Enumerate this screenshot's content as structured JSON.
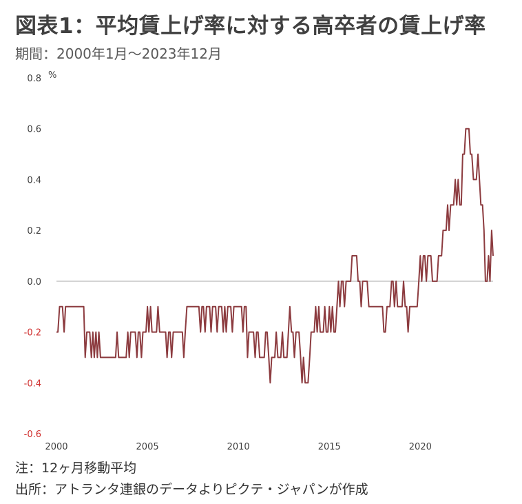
{
  "header": {
    "title": "図表1：平均賃上げ率に対する高卒者の賃上げ率",
    "subtitle": "期間：2000年1月～2023年12月"
  },
  "footer": {
    "note": "注：12ヶ月移動平均",
    "source": "出所：アトランタ連銀のデータよりピクテ・ジャパンが作成"
  },
  "colors": {
    "line": "#8c3b3f",
    "zero_line": "#d0d0d0",
    "negative_tick": "#d0302f",
    "positive_tick": "#404040"
  },
  "chart_data": {
    "type": "line",
    "unit": "%",
    "xlim": [
      2000.0,
      2024.0
    ],
    "ylim": [
      -0.6,
      0.8
    ],
    "y_ticks": [
      0.8,
      0.6,
      0.4,
      0.2,
      0.0,
      -0.2,
      -0.4,
      -0.6
    ],
    "y_tick_labels": [
      "0.8",
      "0.6",
      "0.4",
      "0.2",
      "0.0",
      "-0.2",
      "-0.4",
      "-0.6"
    ],
    "x_ticks": [
      2000,
      2005,
      2010,
      2015,
      2020
    ],
    "x_tick_labels": [
      "2000",
      "2005",
      "2010",
      "2015",
      "2020"
    ],
    "grid": false,
    "zero_line": true,
    "series": [
      {
        "points": [
          [
            2000.0,
            -0.2
          ],
          [
            2000.08,
            -0.2
          ],
          [
            2000.17,
            -0.1
          ],
          [
            2000.33,
            -0.1
          ],
          [
            2000.42,
            -0.2
          ],
          [
            2000.5,
            -0.1
          ],
          [
            2001.5,
            -0.1
          ],
          [
            2001.58,
            -0.3
          ],
          [
            2001.67,
            -0.2
          ],
          [
            2001.83,
            -0.2
          ],
          [
            2001.92,
            -0.3
          ],
          [
            2002.0,
            -0.2
          ],
          [
            2002.08,
            -0.3
          ],
          [
            2002.17,
            -0.2
          ],
          [
            2002.25,
            -0.3
          ],
          [
            2002.33,
            -0.2
          ],
          [
            2002.42,
            -0.3
          ],
          [
            2003.25,
            -0.3
          ],
          [
            2003.33,
            -0.2
          ],
          [
            2003.42,
            -0.3
          ],
          [
            2003.83,
            -0.3
          ],
          [
            2003.92,
            -0.2
          ],
          [
            2004.0,
            -0.3
          ],
          [
            2004.08,
            -0.2
          ],
          [
            2004.33,
            -0.2
          ],
          [
            2004.42,
            -0.3
          ],
          [
            2004.5,
            -0.2
          ],
          [
            2004.58,
            -0.2
          ],
          [
            2004.67,
            -0.3
          ],
          [
            2004.75,
            -0.2
          ],
          [
            2004.92,
            -0.2
          ],
          [
            2005.0,
            -0.1
          ],
          [
            2005.08,
            -0.2
          ],
          [
            2005.17,
            -0.1
          ],
          [
            2005.25,
            -0.2
          ],
          [
            2005.5,
            -0.2
          ],
          [
            2005.58,
            -0.1
          ],
          [
            2005.67,
            -0.2
          ],
          [
            2006.0,
            -0.2
          ],
          [
            2006.08,
            -0.3
          ],
          [
            2006.17,
            -0.2
          ],
          [
            2006.25,
            -0.2
          ],
          [
            2006.33,
            -0.3
          ],
          [
            2006.42,
            -0.2
          ],
          [
            2006.92,
            -0.2
          ],
          [
            2007.0,
            -0.3
          ],
          [
            2007.08,
            -0.2
          ],
          [
            2007.17,
            -0.1
          ],
          [
            2007.83,
            -0.1
          ],
          [
            2007.92,
            -0.2
          ],
          [
            2008.0,
            -0.1
          ],
          [
            2008.08,
            -0.1
          ],
          [
            2008.17,
            -0.2
          ],
          [
            2008.25,
            -0.1
          ],
          [
            2008.42,
            -0.1
          ],
          [
            2008.5,
            -0.2
          ],
          [
            2008.58,
            -0.1
          ],
          [
            2008.75,
            -0.1
          ],
          [
            2008.83,
            -0.2
          ],
          [
            2008.92,
            -0.1
          ],
          [
            2009.08,
            -0.1
          ],
          [
            2009.17,
            -0.2
          ],
          [
            2009.25,
            -0.1
          ],
          [
            2009.33,
            -0.2
          ],
          [
            2009.42,
            -0.1
          ],
          [
            2009.58,
            -0.1
          ],
          [
            2009.67,
            -0.2
          ],
          [
            2009.75,
            -0.1
          ],
          [
            2010.17,
            -0.1
          ],
          [
            2010.25,
            -0.2
          ],
          [
            2010.33,
            -0.1
          ],
          [
            2010.42,
            -0.1
          ],
          [
            2010.5,
            -0.3
          ],
          [
            2010.58,
            -0.2
          ],
          [
            2010.83,
            -0.2
          ],
          [
            2010.92,
            -0.3
          ],
          [
            2011.0,
            -0.2
          ],
          [
            2011.08,
            -0.2
          ],
          [
            2011.17,
            -0.3
          ],
          [
            2011.42,
            -0.3
          ],
          [
            2011.5,
            -0.2
          ],
          [
            2011.58,
            -0.2
          ],
          [
            2011.67,
            -0.3
          ],
          [
            2011.75,
            -0.4
          ],
          [
            2011.83,
            -0.3
          ],
          [
            2012.0,
            -0.3
          ],
          [
            2012.08,
            -0.2
          ],
          [
            2012.17,
            -0.3
          ],
          [
            2012.33,
            -0.3
          ],
          [
            2012.42,
            -0.2
          ],
          [
            2012.5,
            -0.3
          ],
          [
            2012.67,
            -0.3
          ],
          [
            2012.75,
            -0.2
          ],
          [
            2012.83,
            -0.1
          ],
          [
            2012.92,
            -0.2
          ],
          [
            2013.0,
            -0.2
          ],
          [
            2013.08,
            -0.3
          ],
          [
            2013.17,
            -0.2
          ],
          [
            2013.33,
            -0.2
          ],
          [
            2013.42,
            -0.3
          ],
          [
            2013.5,
            -0.4
          ],
          [
            2013.58,
            -0.3
          ],
          [
            2013.67,
            -0.4
          ],
          [
            2013.83,
            -0.4
          ],
          [
            2013.92,
            -0.3
          ],
          [
            2014.0,
            -0.2
          ],
          [
            2014.17,
            -0.2
          ],
          [
            2014.25,
            -0.1
          ],
          [
            2014.33,
            -0.2
          ],
          [
            2014.42,
            -0.1
          ],
          [
            2014.5,
            -0.2
          ],
          [
            2014.67,
            -0.2
          ],
          [
            2014.75,
            -0.1
          ],
          [
            2014.83,
            -0.2
          ],
          [
            2014.92,
            -0.2
          ],
          [
            2015.0,
            -0.1
          ],
          [
            2015.08,
            -0.2
          ],
          [
            2015.17,
            -0.1
          ],
          [
            2015.25,
            -0.2
          ],
          [
            2015.33,
            -0.2
          ],
          [
            2015.42,
            -0.1
          ],
          [
            2015.5,
            0.0
          ],
          [
            2015.58,
            -0.1
          ],
          [
            2015.67,
            0.0
          ],
          [
            2015.75,
            0.0
          ],
          [
            2015.83,
            -0.1
          ],
          [
            2015.92,
            0.0
          ],
          [
            2016.17,
            0.0
          ],
          [
            2016.25,
            0.1
          ],
          [
            2016.5,
            0.1
          ],
          [
            2016.58,
            0.0
          ],
          [
            2016.67,
            0.0
          ],
          [
            2016.75,
            -0.1
          ],
          [
            2016.83,
            0.0
          ],
          [
            2017.08,
            0.0
          ],
          [
            2017.17,
            -0.1
          ],
          [
            2017.92,
            -0.1
          ],
          [
            2018.0,
            -0.2
          ],
          [
            2018.08,
            -0.2
          ],
          [
            2018.17,
            -0.1
          ],
          [
            2018.33,
            -0.1
          ],
          [
            2018.42,
            0.0
          ],
          [
            2018.5,
            0.0
          ],
          [
            2018.58,
            -0.1
          ],
          [
            2018.67,
            0.0
          ],
          [
            2018.75,
            -0.1
          ],
          [
            2019.0,
            -0.1
          ],
          [
            2019.08,
            0.0
          ],
          [
            2019.17,
            -0.1
          ],
          [
            2019.25,
            -0.1
          ],
          [
            2019.33,
            -0.2
          ],
          [
            2019.42,
            -0.1
          ],
          [
            2019.83,
            -0.1
          ],
          [
            2019.92,
            0.0
          ],
          [
            2020.0,
            0.1
          ],
          [
            2020.08,
            0.0
          ],
          [
            2020.17,
            0.1
          ],
          [
            2020.25,
            0.1
          ],
          [
            2020.33,
            0.0
          ],
          [
            2020.42,
            0.1
          ],
          [
            2020.58,
            0.1
          ],
          [
            2020.67,
            0.0
          ],
          [
            2020.92,
            0.0
          ],
          [
            2021.0,
            0.1
          ],
          [
            2021.17,
            0.1
          ],
          [
            2021.25,
            0.2
          ],
          [
            2021.42,
            0.2
          ],
          [
            2021.5,
            0.3
          ],
          [
            2021.58,
            0.2
          ],
          [
            2021.67,
            0.3
          ],
          [
            2021.83,
            0.3
          ],
          [
            2021.92,
            0.4
          ],
          [
            2022.0,
            0.3
          ],
          [
            2022.08,
            0.4
          ],
          [
            2022.17,
            0.3
          ],
          [
            2022.25,
            0.3
          ],
          [
            2022.33,
            0.5
          ],
          [
            2022.42,
            0.5
          ],
          [
            2022.5,
            0.6
          ],
          [
            2022.67,
            0.6
          ],
          [
            2022.75,
            0.5
          ],
          [
            2022.83,
            0.5
          ],
          [
            2022.92,
            0.4
          ],
          [
            2023.08,
            0.4
          ],
          [
            2023.17,
            0.5
          ],
          [
            2023.25,
            0.4
          ],
          [
            2023.33,
            0.3
          ],
          [
            2023.42,
            0.3
          ],
          [
            2023.5,
            0.2
          ],
          [
            2023.58,
            0.0
          ],
          [
            2023.67,
            0.0
          ],
          [
            2023.75,
            0.1
          ],
          [
            2023.83,
            0.0
          ],
          [
            2023.92,
            0.2
          ],
          [
            2024.0,
            0.1
          ]
        ]
      }
    ]
  }
}
